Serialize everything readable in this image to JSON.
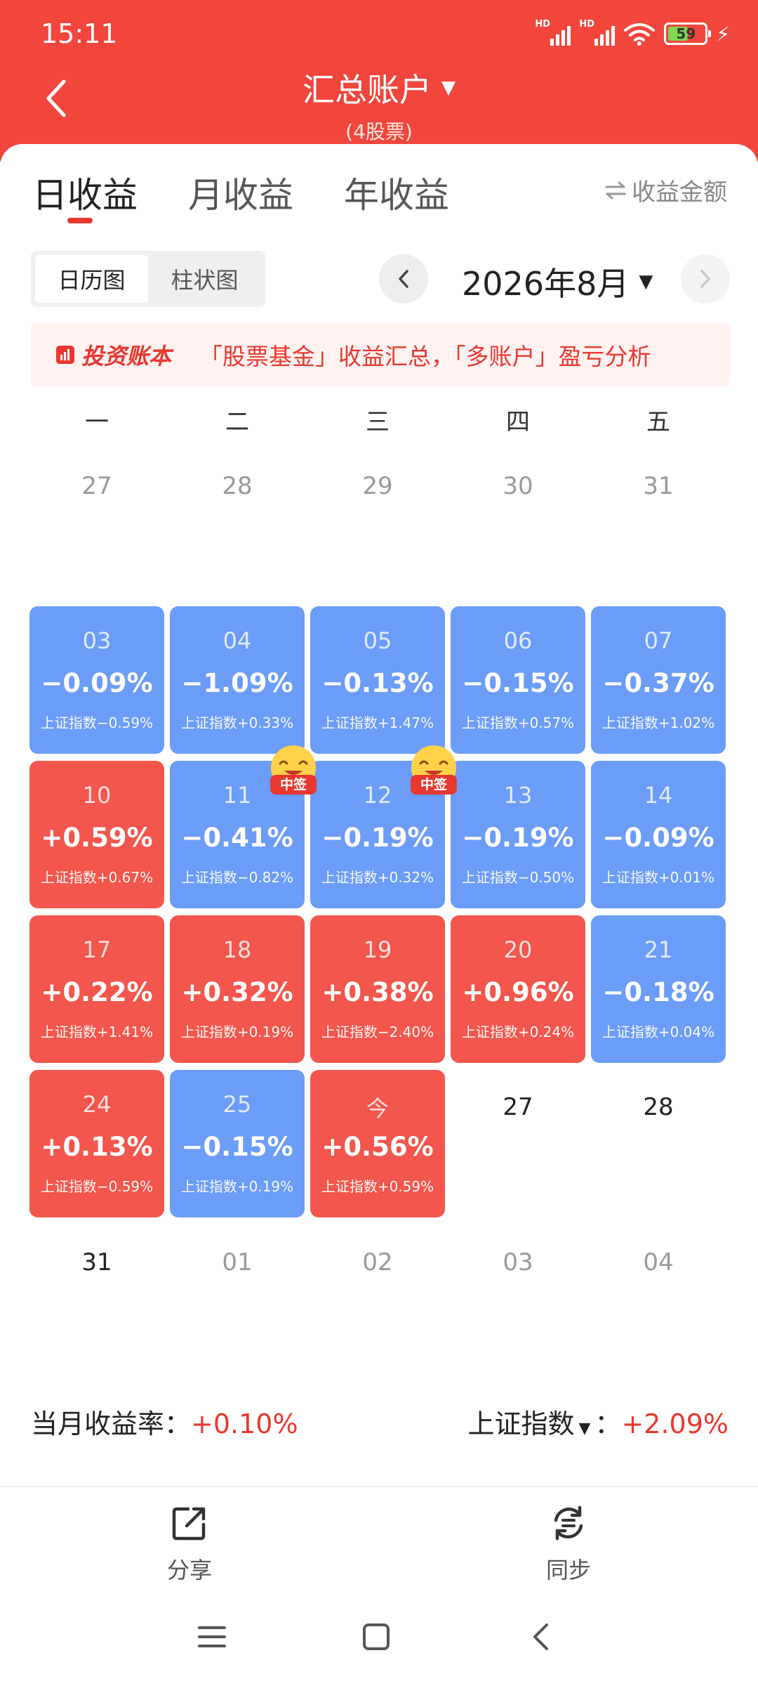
{
  "status_bar": {
    "time": "15:11",
    "battery": "59",
    "signal_1": "HD",
    "signal_2": "HD"
  },
  "header": {
    "title": "汇总账户",
    "subtitle": "(4股票)"
  },
  "tabs": [
    {
      "label": "日收益",
      "active": true
    },
    {
      "label": "月收益",
      "active": false
    },
    {
      "label": "年收益",
      "active": false
    }
  ],
  "amount_toggle": {
    "icon": "swap-arrows-icon",
    "label": "收益金额"
  },
  "view_toggle": {
    "calendar": "日历图",
    "bar": "柱状图",
    "active": "calendar"
  },
  "month_nav": {
    "label": "2026年8月"
  },
  "banner": {
    "logo": "投资账本",
    "text": "「股票基金」收益汇总，「多账户」盈亏分析"
  },
  "weekdays": [
    "一",
    "二",
    "三",
    "四",
    "五"
  ],
  "prev_month_days": [
    "27",
    "28",
    "29",
    "30",
    "31"
  ],
  "days": [
    {
      "day": "03",
      "return": "−0.09%",
      "index": "上证指数−0.59%",
      "trend": "neg"
    },
    {
      "day": "04",
      "return": "−1.09%",
      "index": "上证指数+0.33%",
      "trend": "neg"
    },
    {
      "day": "05",
      "return": "−0.13%",
      "index": "上证指数+1.47%",
      "trend": "neg"
    },
    {
      "day": "06",
      "return": "−0.15%",
      "index": "上证指数+0.57%",
      "trend": "neg"
    },
    {
      "day": "07",
      "return": "−0.37%",
      "index": "上证指数+1.02%",
      "trend": "neg"
    },
    {
      "day": "10",
      "return": "+0.59%",
      "index": "上证指数+0.67%",
      "trend": "pos"
    },
    {
      "day": "11",
      "return": "−0.41%",
      "index": "上证指数−0.82%",
      "trend": "neg"
    },
    {
      "day": "12",
      "return": "−0.19%",
      "index": "上证指数+0.32%",
      "trend": "neg"
    },
    {
      "day": "13",
      "return": "−0.19%",
      "index": "上证指数−0.50%",
      "trend": "neg"
    },
    {
      "day": "14",
      "return": "−0.09%",
      "index": "上证指数+0.01%",
      "trend": "neg"
    },
    {
      "day": "17",
      "return": "+0.22%",
      "index": "上证指数+1.41%",
      "trend": "pos"
    },
    {
      "day": "18",
      "return": "+0.32%",
      "index": "上证指数+0.19%",
      "trend": "pos"
    },
    {
      "day": "19",
      "return": "+0.38%",
      "index": "上证指数−2.40%",
      "trend": "pos"
    },
    {
      "day": "20",
      "return": "+0.96%",
      "index": "上证指数+0.24%",
      "trend": "pos"
    },
    {
      "day": "21",
      "return": "−0.18%",
      "index": "上证指数+0.04%",
      "trend": "neg"
    },
    {
      "day": "24",
      "return": "+0.13%",
      "index": "上证指数−0.59%",
      "trend": "pos"
    },
    {
      "day": "25",
      "return": "−0.15%",
      "index": "上证指数+0.19%",
      "trend": "neg"
    },
    {
      "day": "今",
      "return": "+0.56%",
      "index": "上证指数+0.59%",
      "trend": "pos"
    }
  ],
  "future_days": [
    "27",
    "28",
    "31"
  ],
  "next_month_days": [
    "01",
    "02",
    "03",
    "04"
  ],
  "badges": [
    {
      "label": "中签"
    },
    {
      "label": "中签"
    }
  ],
  "summary": {
    "month_return_label": "当月收益率：",
    "month_return_value": "+0.10%",
    "index_label": "上证指数",
    "index_sep": "：",
    "index_value": "+2.09%"
  },
  "actions": {
    "share": "分享",
    "sync": "同步"
  },
  "colors": {
    "header": "#f2463c",
    "positive": "#f2564c",
    "negative": "#6a9cf8",
    "accent": "#e8382f"
  }
}
